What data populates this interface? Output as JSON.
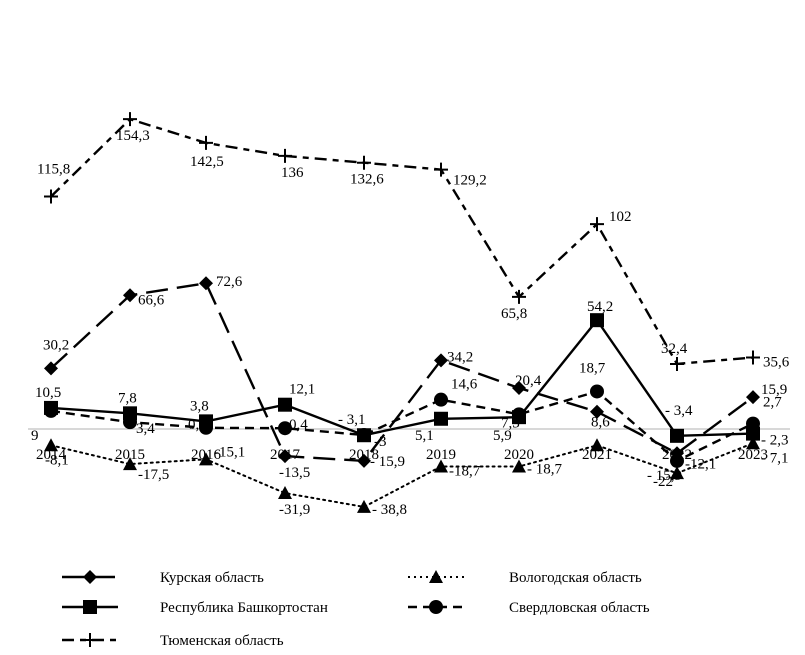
{
  "chart_data": {
    "type": "line",
    "title": "",
    "xlabel": "",
    "ylabel": "",
    "x": [
      "2014",
      "2015",
      "2016",
      "2017",
      "2018",
      "2019",
      "2020",
      "2021",
      "2022",
      "2023"
    ],
    "ylim": [
      -45,
      165
    ],
    "grid": false,
    "legend_position": "bottom",
    "series": [
      {
        "name": "Курская область",
        "marker": "diamond",
        "dash": "long-dash",
        "values": [
          30.2,
          66.6,
          72.6,
          -13.5,
          -15.9,
          34.2,
          20.4,
          8.6,
          -12.1,
          15.9
        ],
        "labels": [
          "30,2",
          "66,6",
          "72,6",
          "-13,5",
          "- 15,9",
          "34,2",
          "20,4",
          "8,6",
          "-12,1",
          "15,9"
        ]
      },
      {
        "name": "Вологодская область",
        "marker": "triangle",
        "dash": "dotted",
        "values": [
          -8.1,
          -17.5,
          -15.1,
          -31.9,
          -38.8,
          -18.7,
          -18.7,
          -8.1,
          -22,
          -7.1
        ],
        "labels": [
          "-8,1",
          "-17,5",
          "-15,1",
          "-31,9",
          "- 38,8",
          "-18,7",
          "- 18,7",
          "",
          "-22",
          "- 7,1"
        ]
      },
      {
        "name": "Республика Башкортостан",
        "marker": "square",
        "dash": "solid",
        "values": [
          10.5,
          7.8,
          3.8,
          12.1,
          -3.1,
          5.1,
          5.9,
          54.2,
          -3.4,
          -2.3
        ],
        "labels": [
          "10,5",
          "7,8",
          "3,8",
          "12,1",
          "- 3,1",
          "5,1",
          "5,9",
          "54,2",
          "- 3,4",
          "- 2,3"
        ]
      },
      {
        "name": "Свердловская область",
        "marker": "circle",
        "dash": "dashed",
        "values": [
          9,
          3.4,
          0.6,
          0.4,
          -3,
          14.6,
          7.3,
          18.7,
          -15.9,
          2.7
        ],
        "labels": [
          "9",
          "3,4",
          "0,6",
          "0,4",
          "-3",
          "14,6",
          "7,3",
          "18,7",
          "- 15,9",
          "2,7"
        ]
      },
      {
        "name": "Тюменская область",
        "marker": "plus",
        "dash": "long-dash-short",
        "values": [
          115.8,
          154.3,
          142.5,
          136,
          132.6,
          129.2,
          65.8,
          102,
          32.4,
          35.6
        ],
        "labels": [
          "115,8",
          "154,3",
          "142,5",
          "136",
          "132,6",
          "129,2",
          "65,8",
          "102",
          "32,4",
          "35,6"
        ]
      }
    ]
  }
}
